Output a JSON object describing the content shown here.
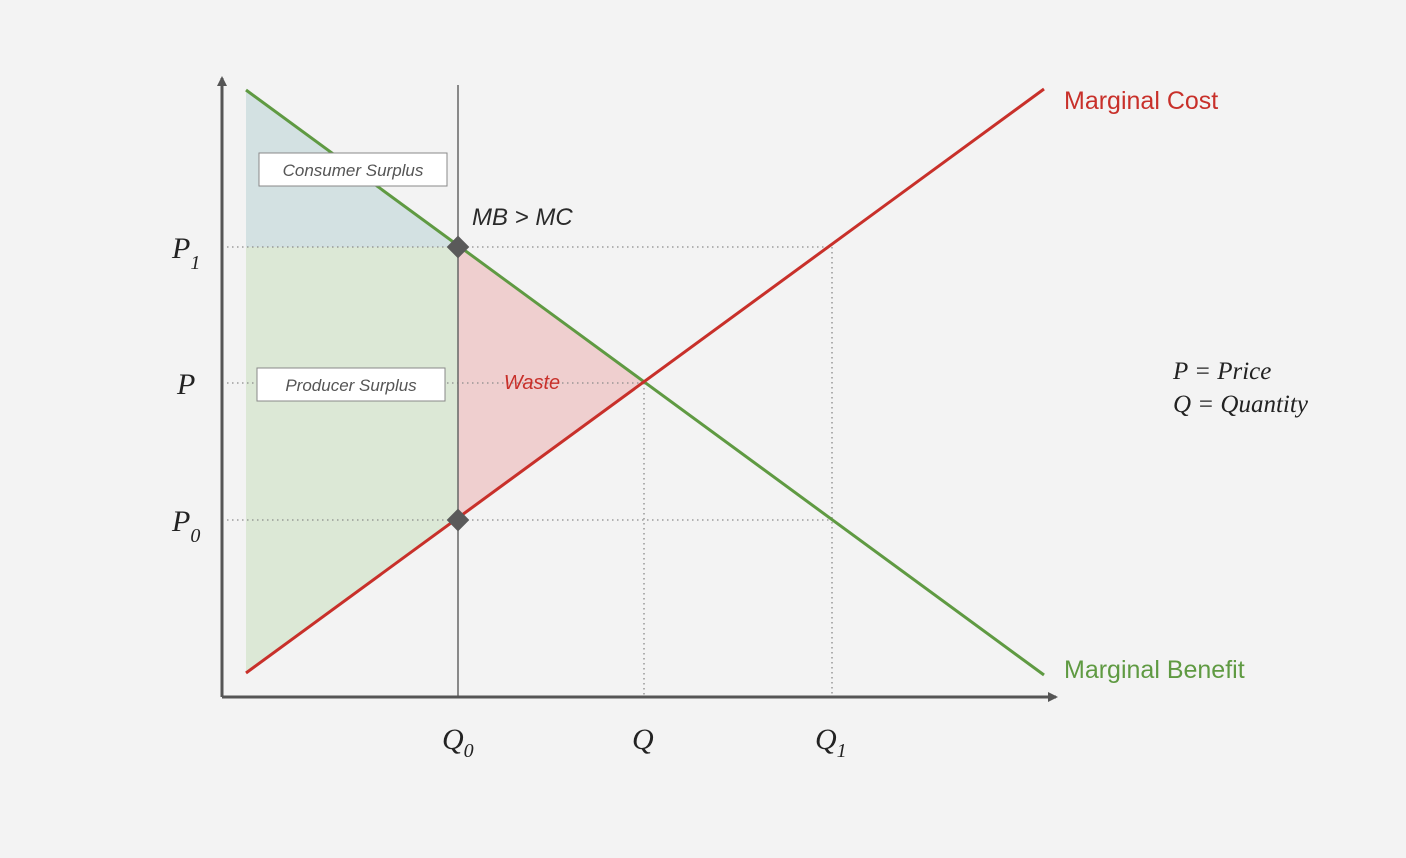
{
  "curves": {
    "marginal_cost": {
      "label": "Marginal Cost",
      "color": "#c8302a"
    },
    "marginal_benefit": {
      "label": "Marginal Benefit",
      "color": "#5f9a42"
    }
  },
  "axes": {
    "y_ticks": [
      {
        "main": "P",
        "sub": "1"
      },
      {
        "main": "P",
        "sub": ""
      },
      {
        "main": "P",
        "sub": "0"
      }
    ],
    "x_ticks": [
      {
        "main": "Q",
        "sub": "0"
      },
      {
        "main": "Q",
        "sub": ""
      },
      {
        "main": "Q",
        "sub": "1"
      }
    ]
  },
  "regions": {
    "consumer_surplus": {
      "label": "Consumer Surplus",
      "color": "#d3e1e2"
    },
    "producer_surplus": {
      "label": "Producer Surplus",
      "color": "#dce8d6"
    },
    "waste": {
      "label": "Waste",
      "color": "#efcfcf"
    }
  },
  "annotations": {
    "inequality": "MB > MC"
  },
  "legend": {
    "line1": "P = Price",
    "line2": "Q = Quantity"
  },
  "colors": {
    "background": "#f3f3f3",
    "axis": "#555555",
    "marker": "#5a5a5a",
    "dotted": "#8a8a8a"
  }
}
